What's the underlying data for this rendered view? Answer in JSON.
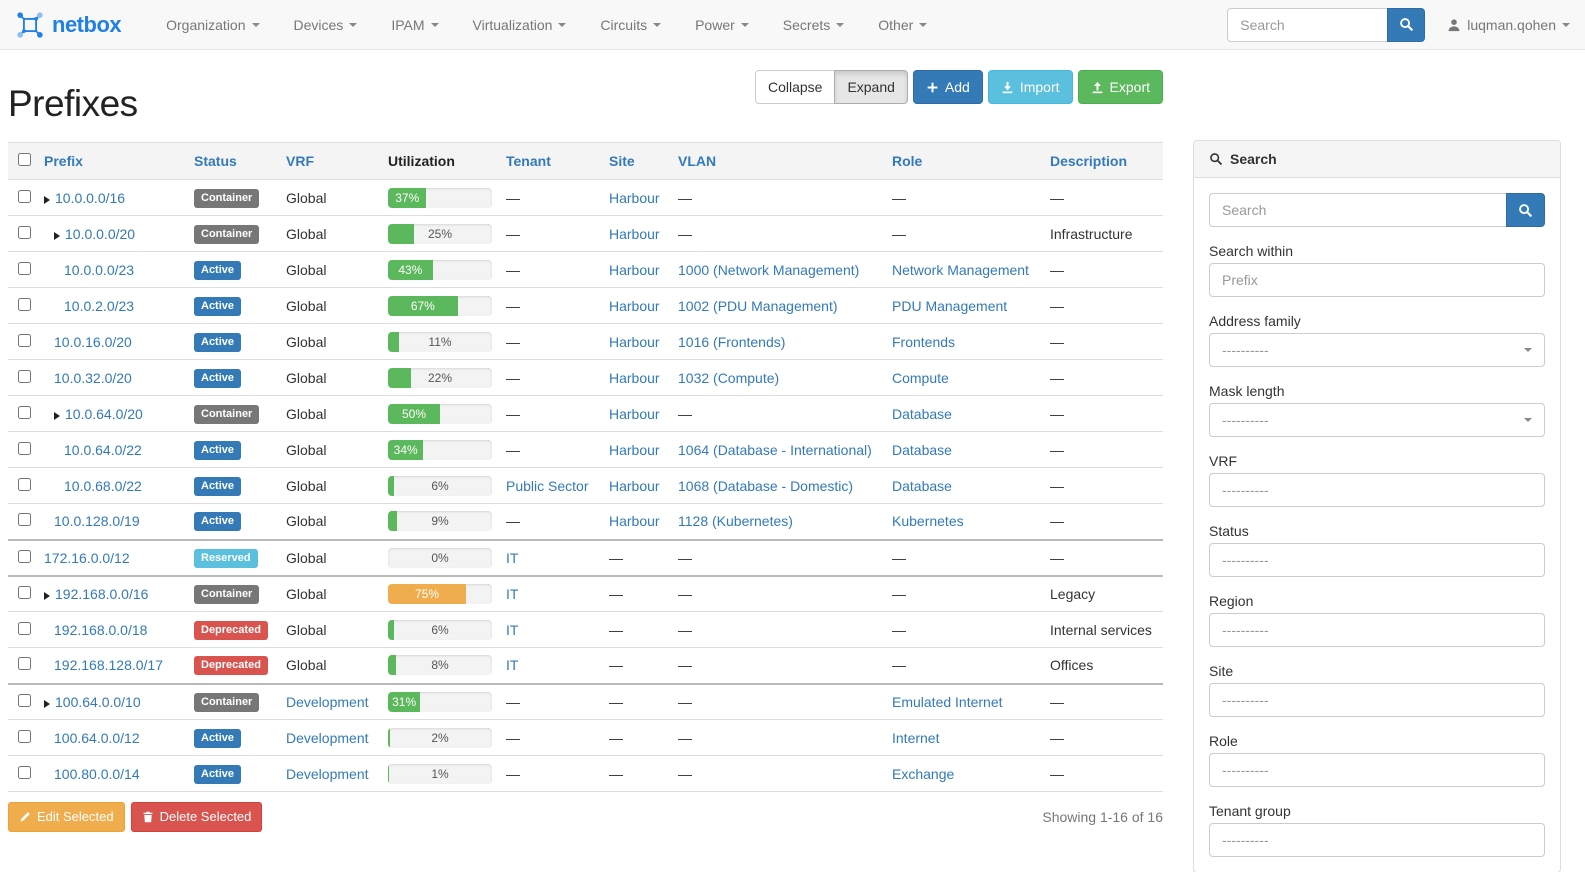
{
  "navbar": {
    "brand": "netbox",
    "menus": [
      "Organization",
      "Devices",
      "IPAM",
      "Virtualization",
      "Circuits",
      "Power",
      "Secrets",
      "Other"
    ],
    "search_placeholder": "Search",
    "user": "luqman.qohen"
  },
  "page": {
    "title": "Prefixes",
    "collapse_label": "Collapse",
    "expand_label": "Expand",
    "add_label": "Add",
    "import_label": "Import",
    "export_label": "Export",
    "edit_selected_label": "Edit Selected",
    "delete_selected_label": "Delete Selected",
    "showing": "Showing 1-16 of 16"
  },
  "table": {
    "columns": [
      {
        "label": "Prefix",
        "sortable": true
      },
      {
        "label": "Status",
        "sortable": true
      },
      {
        "label": "VRF",
        "sortable": true
      },
      {
        "label": "Utilization",
        "sortable": false
      },
      {
        "label": "Tenant",
        "sortable": true
      },
      {
        "label": "Site",
        "sortable": true
      },
      {
        "label": "VLAN",
        "sortable": true
      },
      {
        "label": "Role",
        "sortable": true
      },
      {
        "label": "Description",
        "sortable": true
      }
    ],
    "rows": [
      {
        "prefix": "10.0.0.0/16",
        "depth": 0,
        "has_children": true,
        "status": "Container",
        "vrf": "Global",
        "vrf_is_link": false,
        "utilization": 37,
        "utilization_warning": false,
        "tenant": "—",
        "site": "Harbour",
        "vlan": "—",
        "role": "—",
        "description": "—",
        "group_start": false
      },
      {
        "prefix": "10.0.0.0/20",
        "depth": 1,
        "has_children": true,
        "status": "Container",
        "vrf": "Global",
        "vrf_is_link": false,
        "utilization": 25,
        "utilization_warning": false,
        "tenant": "—",
        "site": "Harbour",
        "vlan": "—",
        "role": "—",
        "description": "Infrastructure",
        "group_start": false
      },
      {
        "prefix": "10.0.0.0/23",
        "depth": 2,
        "has_children": false,
        "status": "Active",
        "vrf": "Global",
        "vrf_is_link": false,
        "utilization": 43,
        "utilization_warning": false,
        "tenant": "—",
        "site": "Harbour",
        "vlan": "1000 (Network Management)",
        "role": "Network Management",
        "description": "—",
        "group_start": false
      },
      {
        "prefix": "10.0.2.0/23",
        "depth": 2,
        "has_children": false,
        "status": "Active",
        "vrf": "Global",
        "vrf_is_link": false,
        "utilization": 67,
        "utilization_warning": false,
        "tenant": "—",
        "site": "Harbour",
        "vlan": "1002 (PDU Management)",
        "role": "PDU Management",
        "description": "—",
        "group_start": false
      },
      {
        "prefix": "10.0.16.0/20",
        "depth": 1,
        "has_children": false,
        "status": "Active",
        "vrf": "Global",
        "vrf_is_link": false,
        "utilization": 11,
        "utilization_warning": false,
        "tenant": "—",
        "site": "Harbour",
        "vlan": "1016 (Frontends)",
        "role": "Frontends",
        "description": "—",
        "group_start": false
      },
      {
        "prefix": "10.0.32.0/20",
        "depth": 1,
        "has_children": false,
        "status": "Active",
        "vrf": "Global",
        "vrf_is_link": false,
        "utilization": 22,
        "utilization_warning": false,
        "tenant": "—",
        "site": "Harbour",
        "vlan": "1032 (Compute)",
        "role": "Compute",
        "description": "—",
        "group_start": false
      },
      {
        "prefix": "10.0.64.0/20",
        "depth": 1,
        "has_children": true,
        "status": "Container",
        "vrf": "Global",
        "vrf_is_link": false,
        "utilization": 50,
        "utilization_warning": false,
        "tenant": "—",
        "site": "Harbour",
        "vlan": "—",
        "role": "Database",
        "description": "—",
        "group_start": false
      },
      {
        "prefix": "10.0.64.0/22",
        "depth": 2,
        "has_children": false,
        "status": "Active",
        "vrf": "Global",
        "vrf_is_link": false,
        "utilization": 34,
        "utilization_warning": false,
        "tenant": "—",
        "site": "Harbour",
        "vlan": "1064 (Database - International)",
        "role": "Database",
        "description": "—",
        "group_start": false
      },
      {
        "prefix": "10.0.68.0/22",
        "depth": 2,
        "has_children": false,
        "status": "Active",
        "vrf": "Global",
        "vrf_is_link": false,
        "utilization": 6,
        "utilization_warning": false,
        "tenant": "Public Sector",
        "site": "Harbour",
        "vlan": "1068 (Database - Domestic)",
        "role": "Database",
        "description": "—",
        "group_start": false
      },
      {
        "prefix": "10.0.128.0/19",
        "depth": 1,
        "has_children": false,
        "status": "Active",
        "vrf": "Global",
        "vrf_is_link": false,
        "utilization": 9,
        "utilization_warning": false,
        "tenant": "—",
        "site": "Harbour",
        "vlan": "1128 (Kubernetes)",
        "role": "Kubernetes",
        "description": "—",
        "group_start": false
      },
      {
        "prefix": "172.16.0.0/12",
        "depth": 0,
        "has_children": false,
        "status": "Reserved",
        "vrf": "Global",
        "vrf_is_link": false,
        "utilization": 0,
        "utilization_warning": false,
        "tenant": "IT",
        "site": "—",
        "vlan": "—",
        "role": "—",
        "description": "—",
        "group_start": true
      },
      {
        "prefix": "192.168.0.0/16",
        "depth": 0,
        "has_children": true,
        "status": "Container",
        "vrf": "Global",
        "vrf_is_link": false,
        "utilization": 75,
        "utilization_warning": true,
        "tenant": "IT",
        "site": "—",
        "vlan": "—",
        "role": "—",
        "description": "Legacy",
        "group_start": true
      },
      {
        "prefix": "192.168.0.0/18",
        "depth": 1,
        "has_children": false,
        "status": "Deprecated",
        "vrf": "Global",
        "vrf_is_link": false,
        "utilization": 6,
        "utilization_warning": false,
        "tenant": "IT",
        "site": "—",
        "vlan": "—",
        "role": "—",
        "description": "Internal services",
        "group_start": false
      },
      {
        "prefix": "192.168.128.0/17",
        "depth": 1,
        "has_children": false,
        "status": "Deprecated",
        "vrf": "Global",
        "vrf_is_link": false,
        "utilization": 8,
        "utilization_warning": false,
        "tenant": "IT",
        "site": "—",
        "vlan": "—",
        "role": "—",
        "description": "Offices",
        "group_start": false
      },
      {
        "prefix": "100.64.0.0/10",
        "depth": 0,
        "has_children": true,
        "status": "Container",
        "vrf": "Development",
        "vrf_is_link": true,
        "utilization": 31,
        "utilization_warning": false,
        "tenant": "—",
        "site": "—",
        "vlan": "—",
        "role": "Emulated Internet",
        "description": "—",
        "group_start": true
      },
      {
        "prefix": "100.64.0.0/12",
        "depth": 1,
        "has_children": false,
        "status": "Active",
        "vrf": "Development",
        "vrf_is_link": true,
        "utilization": 2,
        "utilization_warning": false,
        "tenant": "—",
        "site": "—",
        "vlan": "—",
        "role": "Internet",
        "description": "—",
        "group_start": false
      },
      {
        "prefix": "100.80.0.0/14",
        "depth": 1,
        "has_children": false,
        "status": "Active",
        "vrf": "Development",
        "vrf_is_link": true,
        "utilization": 1,
        "utilization_warning": false,
        "tenant": "—",
        "site": "—",
        "vlan": "—",
        "role": "Exchange",
        "description": "—",
        "group_start": false
      }
    ]
  },
  "filters": {
    "panel_title": "Search",
    "search_placeholder": "Search",
    "fields": [
      {
        "label": "Search within",
        "type": "text",
        "placeholder": "Prefix",
        "value": ""
      },
      {
        "label": "Address family",
        "type": "select",
        "value": "----------"
      },
      {
        "label": "Mask length",
        "type": "select",
        "value": "----------"
      },
      {
        "label": "VRF",
        "type": "box",
        "value": "----------"
      },
      {
        "label": "Status",
        "type": "box",
        "value": "----------"
      },
      {
        "label": "Region",
        "type": "box",
        "value": "----------"
      },
      {
        "label": "Site",
        "type": "box",
        "value": "----------"
      },
      {
        "label": "Role",
        "type": "box",
        "value": "----------"
      },
      {
        "label": "Tenant group",
        "type": "box",
        "value": "----------"
      }
    ]
  },
  "colors": {
    "link_blue": "#337ab7",
    "primary": "#337ab7",
    "info": "#5bc0de",
    "success": "#5cb85c",
    "warning": "#f0ad4e",
    "danger": "#d9534f",
    "container_badge": "#777777",
    "navbar_bg": "#f8f8f8",
    "brand_blue": "#2080e8",
    "utilization_green": "#5cb85c",
    "utilization_orange": "#f0ad4e"
  }
}
